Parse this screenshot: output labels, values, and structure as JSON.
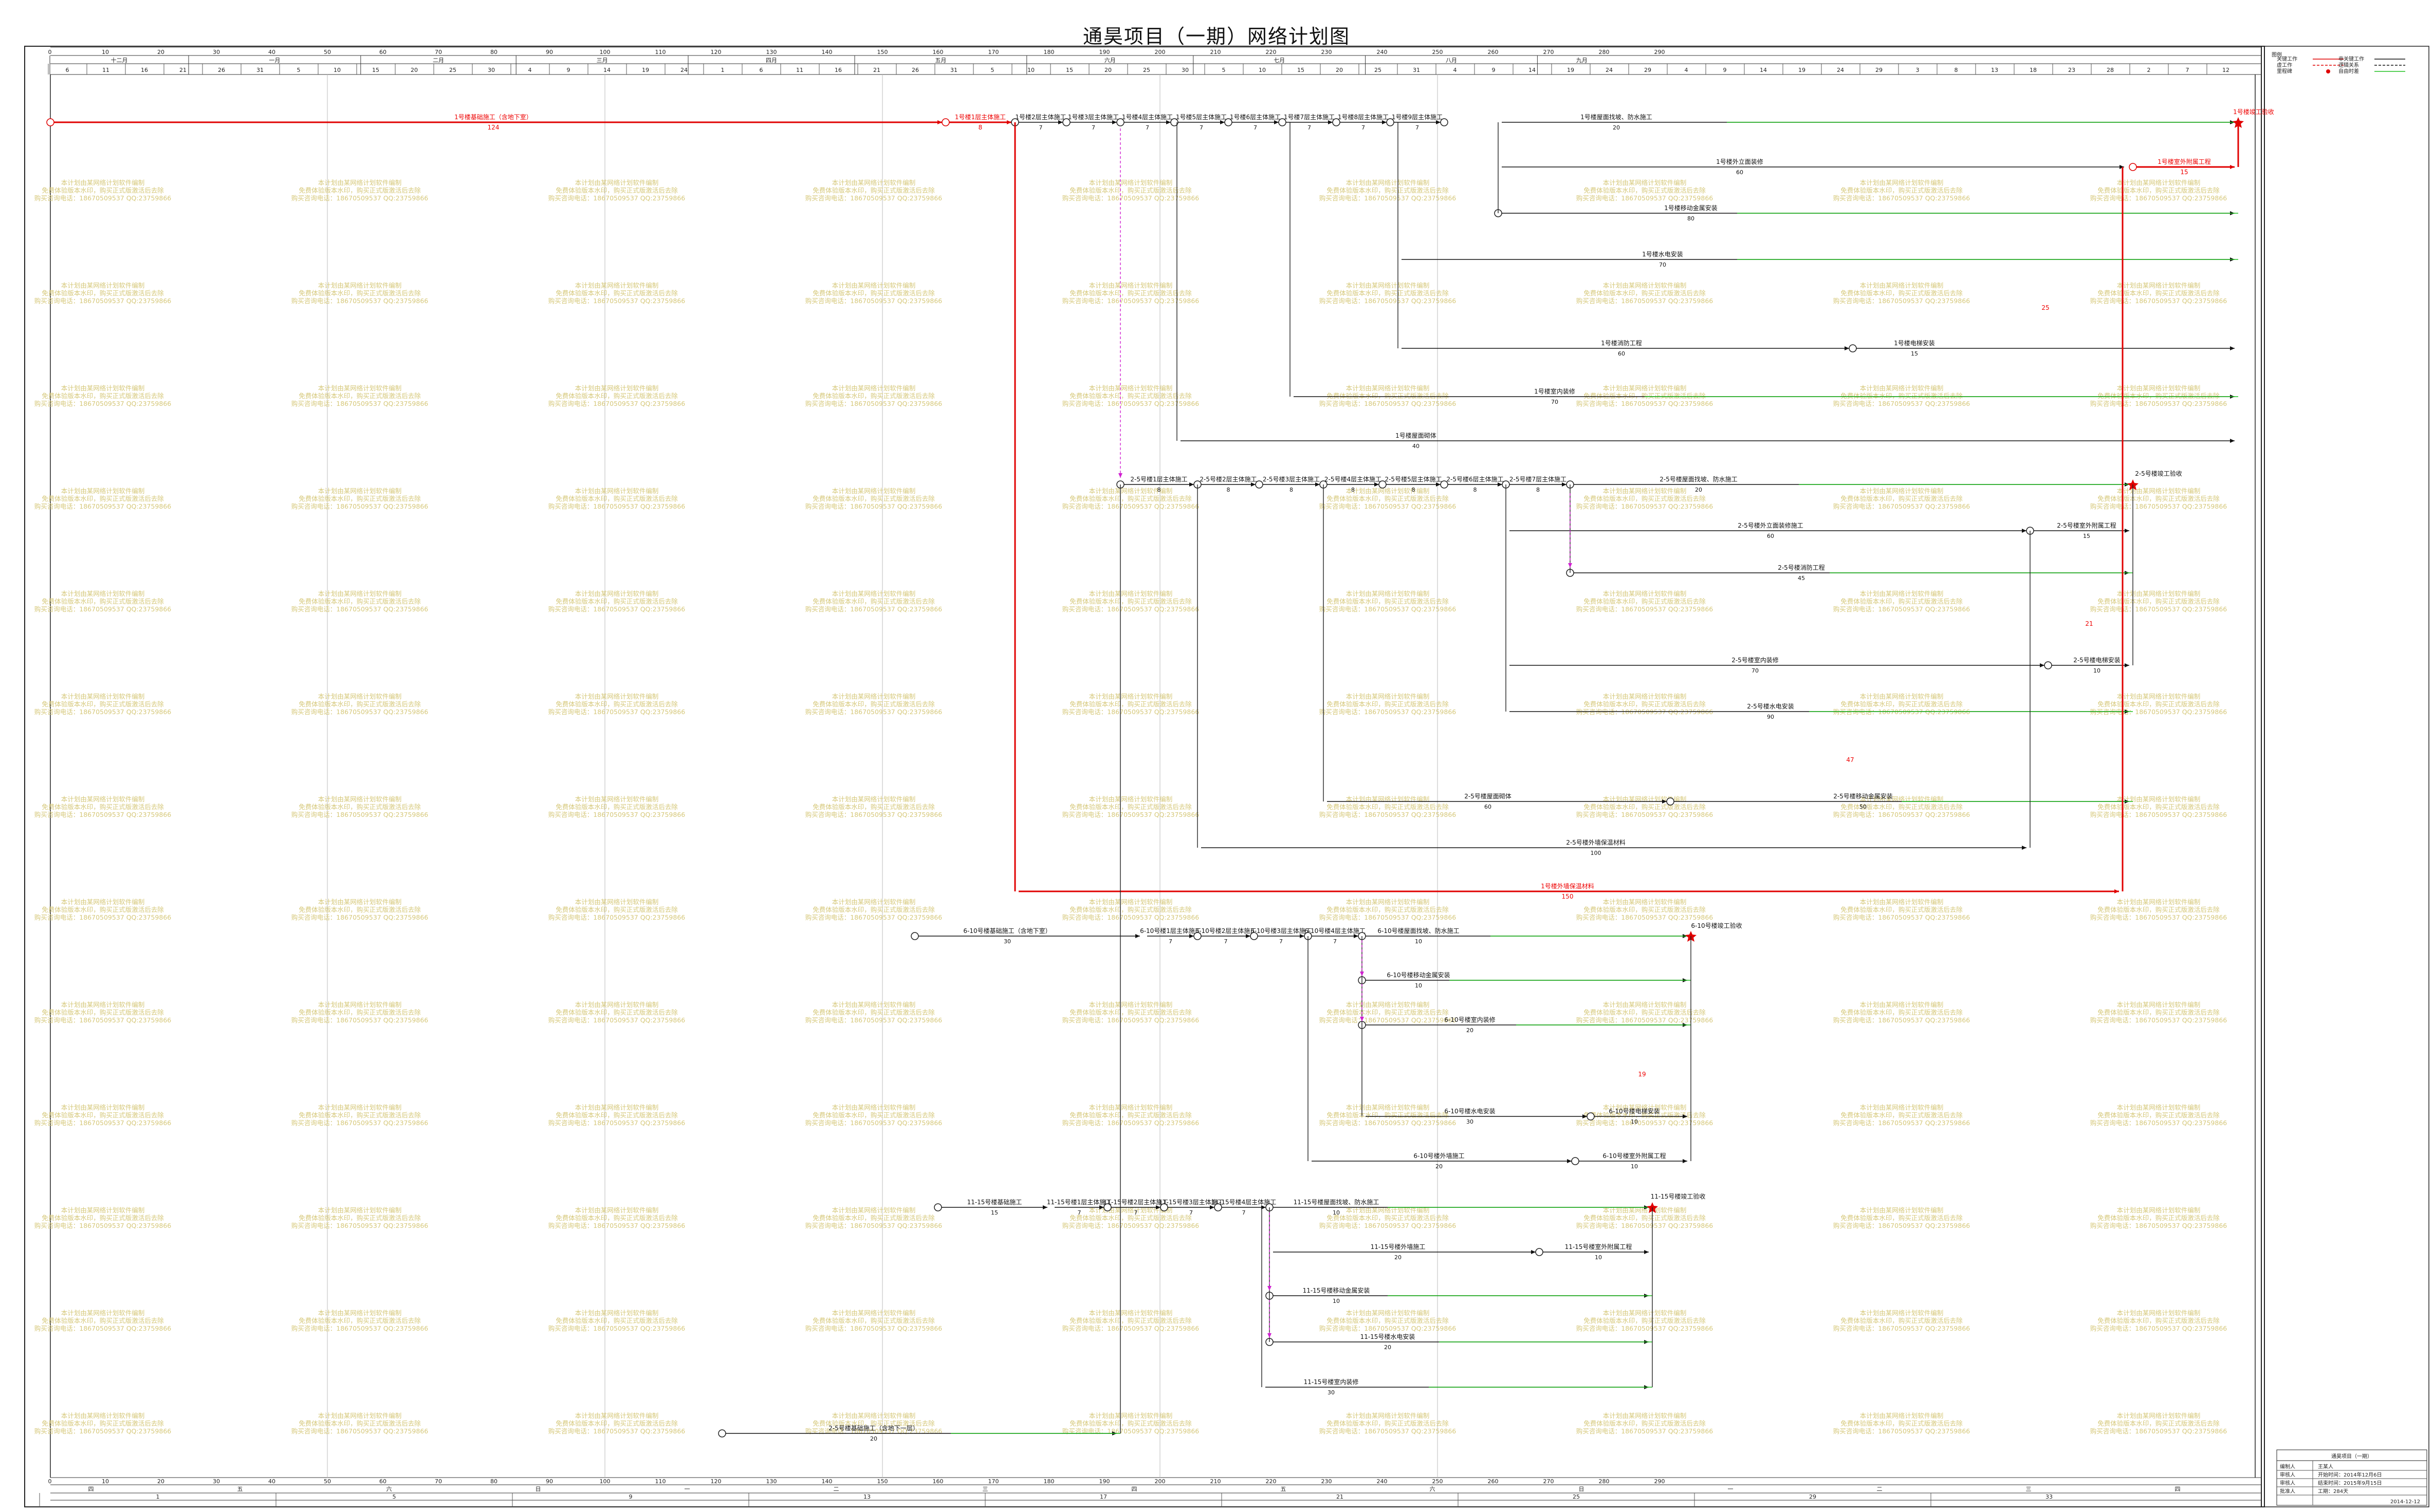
{
  "title": "通昊项目（一期）网络计划图",
  "legend": {
    "label": "图例",
    "items": [
      "关键工作",
      "虚工作",
      "里程碑",
      "非关键工作",
      "逻辑关系",
      "自由时差"
    ]
  },
  "timescale": {
    "months": [
      "十二月",
      "一月",
      "二月",
      "三月",
      "四月",
      "五月",
      "六月",
      "七月",
      "八月",
      "九月"
    ],
    "day_ticks": [
      0,
      10,
      20,
      30,
      40,
      50,
      60,
      70,
      80,
      90,
      100,
      110,
      120,
      130,
      140,
      150,
      160,
      170,
      180,
      190,
      200,
      210,
      220,
      230,
      240,
      250,
      260,
      270,
      280,
      290
    ],
    "date_ticks": [
      "6",
      "11",
      "16",
      "21",
      "26",
      "31",
      "5",
      "10",
      "15",
      "20",
      "25",
      "30",
      "4",
      "9",
      "14",
      "19",
      "24",
      "1",
      "6",
      "11",
      "16",
      "21",
      "26",
      "31",
      "5",
      "10",
      "15",
      "20",
      "25",
      "30",
      "5",
      "10",
      "15",
      "20",
      "25",
      "31",
      "4",
      "9",
      "14",
      "19",
      "24",
      "29",
      "4",
      "9",
      "14",
      "19",
      "24",
      "29",
      "3",
      "8",
      "13",
      "18",
      "23",
      "28",
      "2",
      "7",
      "12"
    ],
    "bottom_labels": [
      "四",
      "五",
      "六",
      "日",
      "一",
      "二",
      "三",
      "四",
      "五",
      "六",
      "日",
      "一",
      "二",
      "三",
      "四"
    ],
    "week_numbers": [
      "1",
      "5",
      "9",
      "13",
      "17",
      "21",
      "25",
      "29",
      "33",
      "37",
      "41"
    ]
  },
  "activities": [
    {
      "label": "1号楼基础施工（含地下室）",
      "duration": "124",
      "critical": true
    },
    {
      "label": "1号楼1层主体施工",
      "duration": "8",
      "critical": true
    },
    {
      "label": "1号楼2层主体施工",
      "duration": "7"
    },
    {
      "label": "1号楼3层主体施工",
      "duration": "7"
    },
    {
      "label": "1号楼4层主体施工",
      "duration": "7"
    },
    {
      "label": "1号楼5层主体施工",
      "duration": "7"
    },
    {
      "label": "1号楼6层主体施工",
      "duration": "7"
    },
    {
      "label": "1号楼7层主体施工",
      "duration": "7"
    },
    {
      "label": "1号楼8层主体施工",
      "duration": "7"
    },
    {
      "label": "1号楼9层主体施工",
      "duration": "7"
    },
    {
      "label": "1号楼屋面找坡、防水施工",
      "duration": "20"
    },
    {
      "label": "1号楼竣工验收",
      "duration": ""
    },
    {
      "label": "1号楼外立面装修",
      "duration": "60"
    },
    {
      "label": "1号楼室外附属工程",
      "duration": "15",
      "critical": true
    },
    {
      "label": "1号楼移动金属安装",
      "duration": "80"
    },
    {
      "label": "1号楼水电安装",
      "duration": "70"
    },
    {
      "label": "1号楼消防工程",
      "duration": "60"
    },
    {
      "label": "1号楼电梯安装",
      "duration": "15"
    },
    {
      "label": "1号楼室内装修",
      "duration": "70"
    },
    {
      "label": "1号楼屋面砌体",
      "duration": "40"
    },
    {
      "label": "2-5号楼1层主体施工",
      "duration": "8"
    },
    {
      "label": "2-5号楼2层主体施工",
      "duration": "8"
    },
    {
      "label": "2-5号楼3层主体施工",
      "duration": "8"
    },
    {
      "label": "2-5号楼4层主体施工",
      "duration": "8"
    },
    {
      "label": "2-5号楼5层主体施工",
      "duration": "8"
    },
    {
      "label": "2-5号楼6层主体施工",
      "duration": "8"
    },
    {
      "label": "2-5号楼7层主体施工",
      "duration": "8"
    },
    {
      "label": "2-5号楼屋面找坡、防水施工",
      "duration": "20"
    },
    {
      "label": "2-5号楼竣工验收",
      "duration": ""
    },
    {
      "label": "2-5号楼外立面装修施工",
      "duration": "60"
    },
    {
      "label": "2-5号楼室外附属工程",
      "duration": "15"
    },
    {
      "label": "2-5号楼消防工程",
      "duration": "45"
    },
    {
      "label": "2-5号楼室内装修",
      "duration": "70"
    },
    {
      "label": "2-5号楼电梯安装",
      "duration": "10"
    },
    {
      "label": "2-5号楼水电安装",
      "duration": "90"
    },
    {
      "label": "2-5号楼屋面砌体",
      "duration": "60"
    },
    {
      "label": "2-5号楼移动金属安装",
      "duration": "50"
    },
    {
      "label": "2-5号楼外墙保温材料",
      "duration": "100"
    },
    {
      "label": "1号楼外墙保温材料",
      "duration": "150",
      "critical": true
    },
    {
      "label": "6-10号楼基础施工（含地下室）",
      "duration": "30"
    },
    {
      "label": "6-10号楼1层主体施工",
      "duration": "7"
    },
    {
      "label": "6-10号楼2层主体施工",
      "duration": "7"
    },
    {
      "label": "6-10号楼3层主体施工",
      "duration": "7"
    },
    {
      "label": "6-10号楼4层主体施工",
      "duration": "7"
    },
    {
      "label": "6-10号楼屋面找坡、防水施工",
      "duration": "10"
    },
    {
      "label": "6-10号楼竣工验收",
      "duration": ""
    },
    {
      "label": "6-10号楼移动金属安装",
      "duration": "10"
    },
    {
      "label": "6-10号楼室内装修",
      "duration": "20"
    },
    {
      "label": "6-10号楼水电安装",
      "duration": "30"
    },
    {
      "label": "6-10号楼电梯安装",
      "duration": "10"
    },
    {
      "label": "6-10号楼外墙施工",
      "duration": "20"
    },
    {
      "label": "6-10号楼室外附属工程",
      "duration": "10"
    },
    {
      "label": "11-15号楼基础施工",
      "duration": "15"
    },
    {
      "label": "11-15号楼1层主体施工",
      "duration": "7"
    },
    {
      "label": "11-15号楼2层主体施工",
      "duration": "7"
    },
    {
      "label": "11-15号楼3层主体施工",
      "duration": "7"
    },
    {
      "label": "11-15号楼4层主体施工",
      "duration": "7"
    },
    {
      "label": "11-15号楼屋面找坡、防水施工",
      "duration": "10"
    },
    {
      "label": "11-15号楼竣工验收",
      "duration": ""
    },
    {
      "label": "11-15号楼外墙施工",
      "duration": "20"
    },
    {
      "label": "11-15号楼室外附属工程",
      "duration": "10"
    },
    {
      "label": "11-15号楼移动金属安装",
      "duration": "10"
    },
    {
      "label": "11-15号楼水电安装",
      "duration": "20"
    },
    {
      "label": "11-15号楼室内装修",
      "duration": "30"
    },
    {
      "label": "2-5号楼基础施工（含地下一层）",
      "duration": "20"
    }
  ],
  "float_labels": [
    "25",
    "21",
    "47",
    "19"
  ],
  "watermark": [
    "本计划由某网络计划软件编制",
    "免费体验版本水印，购买正式版激活后去除",
    "购买咨询电话：18670509537 QQ:23759866"
  ],
  "info_block": {
    "project_label": "通昊项目（一期）",
    "rows": [
      {
        "k": "编制人",
        "v": "王某人"
      },
      {
        "k": "审核人",
        "v": "开始时间：2014年12月6日"
      },
      {
        "k": "审核人",
        "v": "结束时间：2015年9月15日"
      },
      {
        "k": "批准人",
        "v": "工期：284天"
      }
    ],
    "date": "2014-12-12"
  },
  "colors": {
    "critical": "#e00000",
    "normal": "#111111",
    "dummy": "#d020d0",
    "float": "#20c020",
    "watermark": "#d6c87a"
  }
}
